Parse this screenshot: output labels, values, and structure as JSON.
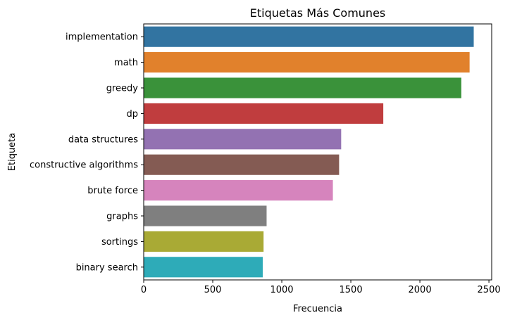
{
  "chart_data": {
    "type": "bar",
    "orientation": "horizontal",
    "title": "Etiquetas Más Comunes",
    "xlabel": "Frecuencia",
    "ylabel": "Etiqueta",
    "xlim": [
      0,
      2520
    ],
    "xticks": [
      0,
      500,
      1000,
      1500,
      2000,
      2500
    ],
    "grid": false,
    "legend": "none",
    "categories": [
      "implementation",
      "math",
      "greedy",
      "dp",
      "data structures",
      "constructive algorithms",
      "brute force",
      "graphs",
      "sortings",
      "binary search"
    ],
    "values": [
      2390,
      2360,
      2300,
      1735,
      1430,
      1415,
      1370,
      890,
      868,
      862
    ],
    "colors": [
      "#3274a1",
      "#e1812c",
      "#3a923a",
      "#c03d3e",
      "#9372b2",
      "#845b53",
      "#d684bd",
      "#7f7f7f",
      "#a9aa35",
      "#2eabb8"
    ]
  }
}
